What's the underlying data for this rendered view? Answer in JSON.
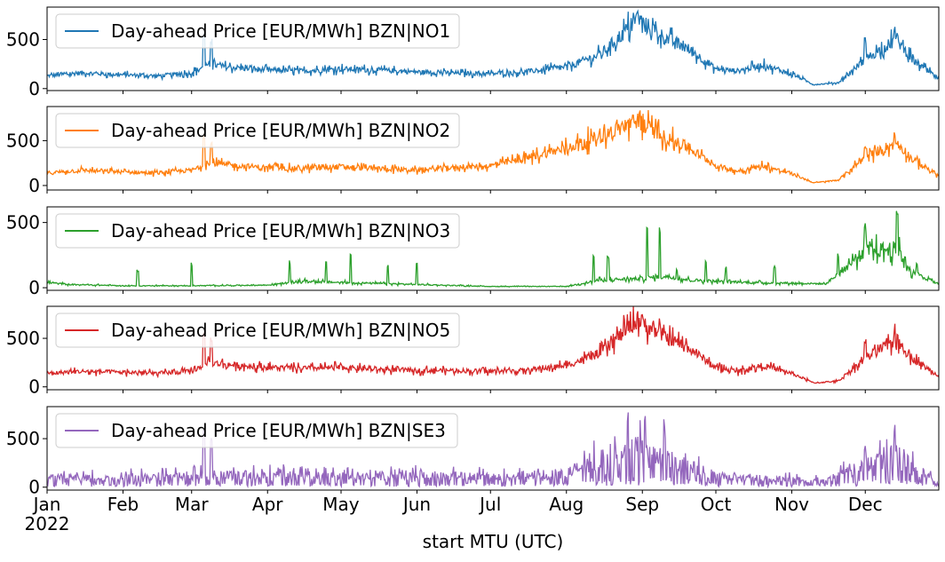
{
  "figure": {
    "xlabel": "start MTU (UTC)",
    "year_label": "2022",
    "month_ticks": [
      "Jan",
      "Feb",
      "Mar",
      "Apr",
      "May",
      "Jun",
      "Jul",
      "Aug",
      "Sep",
      "Oct",
      "Nov",
      "Dec"
    ]
  },
  "chart_data": [
    {
      "type": "line",
      "series": [
        {
          "name": "Day-ahead Price [EUR/MWh] BZN|NO1",
          "color": "#1f77b4"
        }
      ],
      "ylim": [
        -20,
        830
      ],
      "yticks": [
        0,
        500
      ],
      "x_range": [
        "2022-01-01",
        "2022-12-31"
      ],
      "profile": {
        "x": [
          "2022-01-01",
          "2022-01-15",
          "2022-02-01",
          "2022-02-15",
          "2022-03-01",
          "2022-03-08",
          "2022-03-15",
          "2022-04-01",
          "2022-04-15",
          "2022-05-01",
          "2022-05-15",
          "2022-06-01",
          "2022-06-15",
          "2022-07-01",
          "2022-07-15",
          "2022-08-01",
          "2022-08-15",
          "2022-08-30",
          "2022-09-10",
          "2022-09-20",
          "2022-10-01",
          "2022-10-10",
          "2022-10-20",
          "2022-11-01",
          "2022-11-10",
          "2022-11-20",
          "2022-12-01",
          "2022-12-14",
          "2022-12-20",
          "2022-12-31"
        ],
        "y": [
          130,
          160,
          140,
          130,
          160,
          250,
          220,
          190,
          180,
          200,
          190,
          170,
          160,
          150,
          170,
          220,
          350,
          700,
          520,
          400,
          200,
          180,
          240,
          150,
          40,
          60,
          300,
          500,
          300,
          100
        ]
      },
      "spikes": [
        {
          "x": "2022-03-06",
          "y": 580
        },
        {
          "x": "2022-03-09",
          "y": 520
        },
        {
          "x": "2022-08-30",
          "y": 790
        },
        {
          "x": "2022-12-13",
          "y": 660
        },
        {
          "x": "2022-12-01",
          "y": 520
        },
        {
          "x": "2022-09-08",
          "y": 610
        }
      ],
      "noise": 0.35
    },
    {
      "type": "line",
      "series": [
        {
          "name": "Day-ahead Price [EUR/MWh] BZN|NO2",
          "color": "#ff7f0e"
        }
      ],
      "ylim": [
        -50,
        880
      ],
      "yticks": [
        0,
        500
      ],
      "x_range": [
        "2022-01-01",
        "2022-12-31"
      ],
      "profile": {
        "x": [
          "2022-01-01",
          "2022-01-15",
          "2022-02-01",
          "2022-02-15",
          "2022-03-01",
          "2022-03-08",
          "2022-03-15",
          "2022-04-01",
          "2022-04-15",
          "2022-05-01",
          "2022-05-15",
          "2022-06-01",
          "2022-06-15",
          "2022-07-01",
          "2022-07-15",
          "2022-08-01",
          "2022-08-15",
          "2022-08-30",
          "2022-09-10",
          "2022-09-20",
          "2022-10-01",
          "2022-10-10",
          "2022-10-20",
          "2022-11-01",
          "2022-11-10",
          "2022-11-20",
          "2022-12-01",
          "2022-12-14",
          "2022-12-20",
          "2022-12-31"
        ],
        "y": [
          140,
          170,
          150,
          140,
          170,
          250,
          230,
          200,
          190,
          210,
          190,
          170,
          200,
          220,
          300,
          420,
          550,
          720,
          540,
          420,
          220,
          160,
          220,
          130,
          30,
          60,
          320,
          480,
          300,
          110
        ]
      },
      "spikes": [
        {
          "x": "2022-03-06",
          "y": 580
        },
        {
          "x": "2022-03-09",
          "y": 520
        },
        {
          "x": "2022-08-31",
          "y": 840
        },
        {
          "x": "2022-12-13",
          "y": 660
        },
        {
          "x": "2022-12-01",
          "y": 480
        }
      ],
      "noise": 0.35
    },
    {
      "type": "line",
      "series": [
        {
          "name": "Day-ahead Price [EUR/MWh] BZN|NO3",
          "color": "#2ca02c"
        }
      ],
      "ylim": [
        -20,
        620
      ],
      "yticks": [
        0,
        500
      ],
      "x_range": [
        "2022-01-01",
        "2022-12-31"
      ],
      "profile": {
        "x": [
          "2022-01-01",
          "2022-01-10",
          "2022-02-01",
          "2022-03-01",
          "2022-04-01",
          "2022-04-15",
          "2022-05-01",
          "2022-06-01",
          "2022-07-01",
          "2022-08-01",
          "2022-08-15",
          "2022-09-01",
          "2022-09-10",
          "2022-09-20",
          "2022-10-01",
          "2022-10-15",
          "2022-11-01",
          "2022-11-15",
          "2022-12-01",
          "2022-12-14",
          "2022-12-20",
          "2022-12-31"
        ],
        "y": [
          40,
          25,
          15,
          15,
          20,
          50,
          40,
          25,
          10,
          10,
          60,
          70,
          90,
          60,
          50,
          40,
          35,
          30,
          280,
          300,
          120,
          30
        ]
      },
      "spikes": [
        {
          "x": "2022-02-07",
          "y": 140
        },
        {
          "x": "2022-03-01",
          "y": 195
        },
        {
          "x": "2022-04-10",
          "y": 210
        },
        {
          "x": "2022-04-25",
          "y": 200
        },
        {
          "x": "2022-05-05",
          "y": 280
        },
        {
          "x": "2022-05-20",
          "y": 180
        },
        {
          "x": "2022-06-01",
          "y": 190
        },
        {
          "x": "2022-08-12",
          "y": 260
        },
        {
          "x": "2022-08-18",
          "y": 250
        },
        {
          "x": "2022-09-03",
          "y": 510
        },
        {
          "x": "2022-09-08",
          "y": 480
        },
        {
          "x": "2022-09-15",
          "y": 150
        },
        {
          "x": "2022-09-27",
          "y": 210
        },
        {
          "x": "2022-10-05",
          "y": 170
        },
        {
          "x": "2022-10-25",
          "y": 170
        },
        {
          "x": "2022-11-20",
          "y": 270
        },
        {
          "x": "2022-12-01",
          "y": 500
        },
        {
          "x": "2022-12-14",
          "y": 590
        },
        {
          "x": "2022-12-22",
          "y": 210
        }
      ],
      "noise": 0.5
    },
    {
      "type": "line",
      "series": [
        {
          "name": "Day-ahead Price [EUR/MWh] BZN|NO5",
          "color": "#d62728"
        }
      ],
      "ylim": [
        -30,
        830
      ],
      "yticks": [
        0,
        500
      ],
      "x_range": [
        "2022-01-01",
        "2022-12-31"
      ],
      "profile": {
        "x": [
          "2022-01-01",
          "2022-01-15",
          "2022-02-01",
          "2022-02-15",
          "2022-03-01",
          "2022-03-08",
          "2022-03-15",
          "2022-04-01",
          "2022-04-15",
          "2022-05-01",
          "2022-05-15",
          "2022-06-01",
          "2022-06-15",
          "2022-07-01",
          "2022-07-15",
          "2022-08-01",
          "2022-08-15",
          "2022-08-30",
          "2022-09-10",
          "2022-09-20",
          "2022-10-01",
          "2022-10-10",
          "2022-10-20",
          "2022-11-01",
          "2022-11-10",
          "2022-11-20",
          "2022-12-01",
          "2022-12-14",
          "2022-12-20",
          "2022-12-31"
        ],
        "y": [
          140,
          160,
          150,
          140,
          160,
          250,
          230,
          200,
          190,
          200,
          180,
          170,
          170,
          160,
          170,
          220,
          350,
          690,
          520,
          400,
          200,
          160,
          220,
          140,
          40,
          60,
          300,
          480,
          300,
          110
        ]
      },
      "spikes": [
        {
          "x": "2022-03-06",
          "y": 580
        },
        {
          "x": "2022-03-09",
          "y": 520
        },
        {
          "x": "2022-08-30",
          "y": 800
        },
        {
          "x": "2022-12-13",
          "y": 660
        },
        {
          "x": "2022-12-01",
          "y": 500
        }
      ],
      "noise": 0.35
    },
    {
      "type": "line",
      "series": [
        {
          "name": "Day-ahead Price [EUR/MWh] BZN|SE3",
          "color": "#9467bd"
        }
      ],
      "ylim": [
        -30,
        830
      ],
      "yticks": [
        0,
        500
      ],
      "x_range": [
        "2022-01-01",
        "2022-12-31"
      ],
      "profile": {
        "x": [
          "2022-01-01",
          "2022-02-01",
          "2022-03-01",
          "2022-04-01",
          "2022-05-01",
          "2022-06-01",
          "2022-07-01",
          "2022-08-01",
          "2022-08-15",
          "2022-08-30",
          "2022-09-15",
          "2022-10-01",
          "2022-10-15",
          "2022-11-01",
          "2022-11-15",
          "2022-12-01",
          "2022-12-14",
          "2022-12-20",
          "2022-12-31"
        ],
        "y": [
          100,
          100,
          120,
          130,
          110,
          120,
          110,
          140,
          300,
          380,
          260,
          120,
          100,
          80,
          60,
          250,
          350,
          200,
          40
        ]
      },
      "spikes": [
        {
          "x": "2022-03-06",
          "y": 600
        },
        {
          "x": "2022-03-09",
          "y": 550
        },
        {
          "x": "2022-08-26",
          "y": 780
        },
        {
          "x": "2022-09-02",
          "y": 790
        },
        {
          "x": "2022-09-10",
          "y": 700
        },
        {
          "x": "2022-12-13",
          "y": 660
        }
      ],
      "noise": 1.0
    }
  ]
}
